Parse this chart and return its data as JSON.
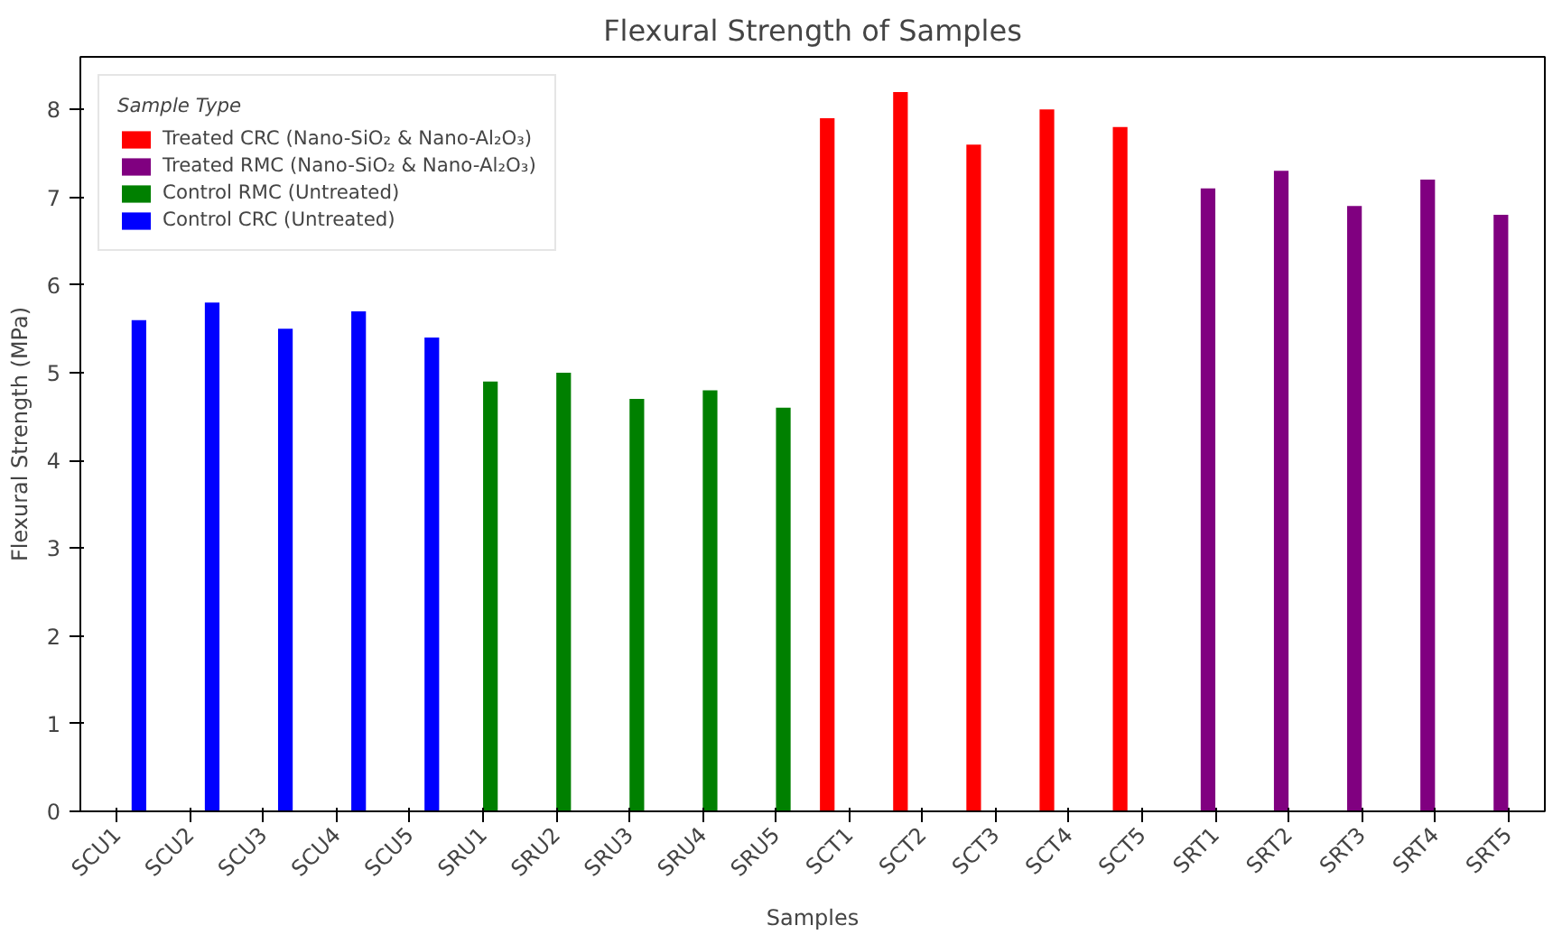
{
  "chart_data": {
    "type": "bar",
    "title": "Flexural Strength of Samples",
    "xlabel": "Samples",
    "ylabel": "Flexural Strength (MPa)",
    "legend_title": "Sample Type",
    "legend": "top left",
    "categories": [
      "SCU1",
      "SCU2",
      "SCU3",
      "SCU4",
      "SCU5",
      "SRU1",
      "SRU2",
      "SRU3",
      "SRU4",
      "SRU5",
      "SCT1",
      "SCT2",
      "SCT3",
      "SCT4",
      "SCT5",
      "SRT1",
      "SRT2",
      "SRT3",
      "SRT4",
      "SRT5"
    ],
    "series": [
      {
        "name": "Treated CRC (Nano-SiO₂ & Nano-Al₂O₃)",
        "color": "#ff0000",
        "values": [
          null,
          null,
          null,
          null,
          null,
          null,
          null,
          null,
          null,
          null,
          7.9,
          8.2,
          7.6,
          8.0,
          7.8,
          null,
          null,
          null,
          null,
          null
        ]
      },
      {
        "name": "Treated RMC (Nano-SiO₂ & Nano-Al₂O₃)",
        "color": "#800080",
        "values": [
          null,
          null,
          null,
          null,
          null,
          null,
          null,
          null,
          null,
          null,
          null,
          null,
          null,
          null,
          null,
          7.1,
          7.3,
          6.9,
          7.2,
          6.8
        ]
      },
      {
        "name": "Control RMC (Untreated)",
        "color": "#008000",
        "values": [
          null,
          null,
          null,
          null,
          null,
          4.9,
          5.0,
          4.7,
          4.8,
          4.6,
          null,
          null,
          null,
          null,
          null,
          null,
          null,
          null,
          null,
          null
        ]
      },
      {
        "name": "Control CRC (Untreated)",
        "color": "#0000ff",
        "values": [
          5.6,
          5.8,
          5.5,
          5.7,
          5.4,
          null,
          null,
          null,
          null,
          null,
          null,
          null,
          null,
          null,
          null,
          null,
          null,
          null,
          null,
          null
        ]
      }
    ],
    "ylim": [
      0,
      8.6
    ],
    "yticks": [
      0,
      1,
      2,
      3,
      4,
      5,
      6,
      7,
      8
    ]
  }
}
